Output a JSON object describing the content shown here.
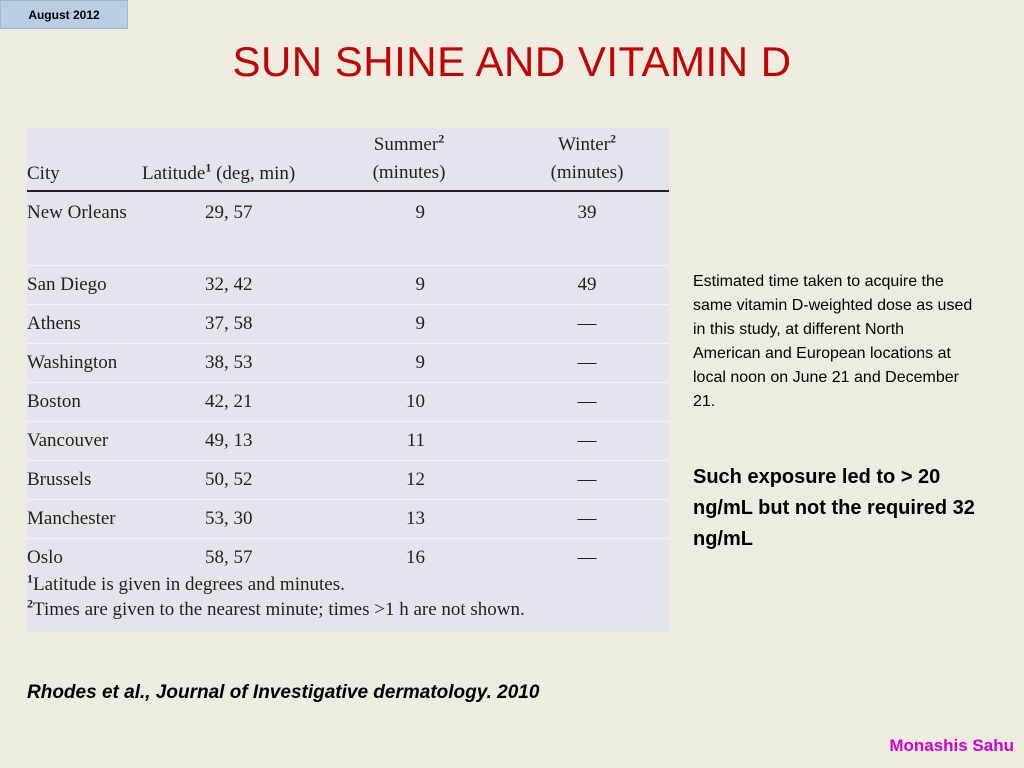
{
  "date_tag": "August 2012",
  "title": "SUN SHINE AND VITAMIN D",
  "table": {
    "headers": {
      "city": "City",
      "latitude": "Latitude",
      "latitude_sup": "1",
      "latitude_unit": "(deg, min)",
      "summer": "Summer",
      "summer_sup": "2",
      "summer_unit": "(minutes)",
      "winter": "Winter",
      "winter_sup": "2",
      "winter_unit": "(minutes)"
    },
    "rows": [
      {
        "city": "New Orleans",
        "latitude": "29,  57",
        "summer": "9",
        "winter": "39"
      },
      {
        "city": "San Diego",
        "latitude": "32,  42",
        "summer": "9",
        "winter": "49"
      },
      {
        "city": "Athens",
        "latitude": "37,  58",
        "summer": "9",
        "winter": "—"
      },
      {
        "city": "Washington",
        "latitude": "38,  53",
        "summer": "9",
        "winter": "—"
      },
      {
        "city": "Boston",
        "latitude": "42,  21",
        "summer": "10",
        "winter": "—"
      },
      {
        "city": "Vancouver",
        "latitude": "49,  13",
        "summer": "11",
        "winter": "—"
      },
      {
        "city": "Brussels",
        "latitude": "50,  52",
        "summer": "12",
        "winter": "—"
      },
      {
        "city": "Manchester",
        "latitude": "53,  30",
        "summer": "13",
        "winter": "—"
      },
      {
        "city": "Oslo",
        "latitude": "58,  57",
        "summer": "16",
        "winter": "—"
      }
    ],
    "footnote_1_mark": "1",
    "footnote_1": "Latitude is given in degrees and minutes.",
    "footnote_2_mark": "2",
    "footnote_2": "Times are given to the nearest minute; times >1 h are not shown."
  },
  "side_text": "Estimated time taken to acquire the same vitamin D-weighted dose as used in this study, at different North American and European locations at local noon on June 21 and December 21.",
  "side_bold": "Such exposure led to > 20 ng/mL but not the required 32 ng/mL",
  "citation": "Rhodes et al., Journal of Investigative dermatology. 2010",
  "author": "Monashis Sahu"
}
